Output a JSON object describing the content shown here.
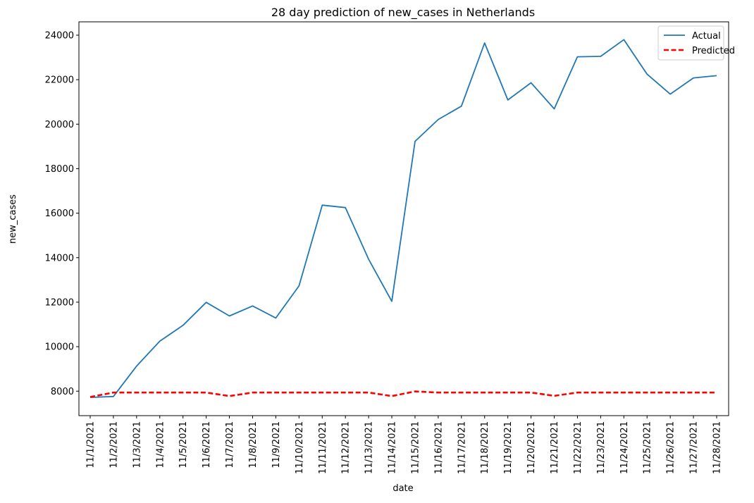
{
  "chart_data": {
    "type": "line",
    "title": "28 day prediction of new_cases in Netherlands",
    "xlabel": "date",
    "ylabel": "new_cases",
    "ylim": [
      6900,
      24600
    ],
    "yticks": [
      8000,
      10000,
      12000,
      14000,
      16000,
      18000,
      20000,
      22000,
      24000
    ],
    "grid": false,
    "legend_position": "top-right",
    "categories": [
      "11/1/2021",
      "11/2/2021",
      "11/3/2021",
      "11/4/2021",
      "11/5/2021",
      "11/6/2021",
      "11/7/2021",
      "11/8/2021",
      "11/9/2021",
      "11/10/2021",
      "11/11/2021",
      "11/12/2021",
      "11/13/2021",
      "11/14/2021",
      "11/15/2021",
      "11/16/2021",
      "11/17/2021",
      "11/18/2021",
      "11/19/2021",
      "11/20/2021",
      "11/21/2021",
      "11/22/2021",
      "11/23/2021",
      "11/24/2021",
      "11/25/2021",
      "11/26/2021",
      "11/27/2021",
      "11/28/2021"
    ],
    "series": [
      {
        "name": "Actual",
        "color": "#1f77b4",
        "style": "solid",
        "values": [
          7720,
          7760,
          9130,
          10250,
          10960,
          11990,
          11380,
          11830,
          11290,
          12730,
          16360,
          16250,
          13930,
          12040,
          19230,
          20210,
          20810,
          23650,
          21090,
          21860,
          20690,
          23030,
          23050,
          23800,
          22250,
          21350,
          22080,
          22180
        ]
      },
      {
        "name": "Predicted",
        "color": "#ff0000",
        "style": "dashed",
        "values": [
          7740,
          7940,
          7940,
          7940,
          7940,
          7940,
          7780,
          7940,
          7940,
          7940,
          7940,
          7940,
          7940,
          7780,
          7990,
          7940,
          7940,
          7940,
          7940,
          7940,
          7790,
          7940,
          7940,
          7940,
          7940,
          7940,
          7940,
          7940
        ]
      }
    ]
  }
}
